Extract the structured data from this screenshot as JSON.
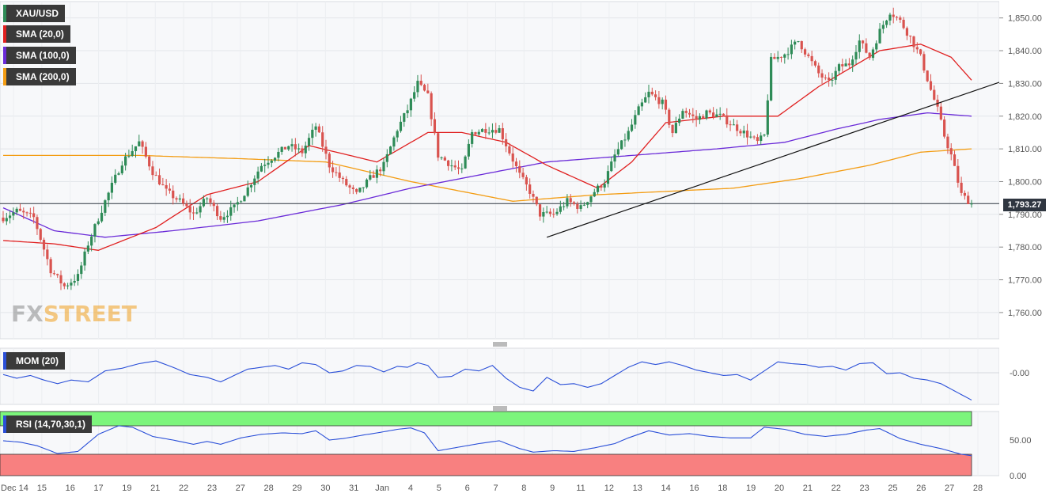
{
  "legends": {
    "main": "XAU/USD",
    "sma20": "SMA (20,0)",
    "sma100": "SMA (100,0)",
    "sma200": "SMA (200,0)",
    "mom": "MOM (20)",
    "rsi": "RSI (14,70,30,1)"
  },
  "colors": {
    "up": "#2e8b57",
    "down": "#d9534f",
    "sma20": "#e02020",
    "sma100": "#6a2ad8",
    "sma200": "#f39c12",
    "indicator": "#2a4fd8",
    "rsi_overbought": "#7cf57c",
    "rsi_oversold": "#f88080"
  },
  "watermark": {
    "part1": "FX",
    "part2": "STREET"
  },
  "current_price": "1,793.27",
  "chart_data": {
    "type": "candlestick",
    "price_axis": {
      "ticks": [
        1850,
        1840,
        1830,
        1820,
        1810,
        1800,
        1790,
        1780,
        1770,
        1760
      ],
      "tick_labels": [
        "1,850.00",
        "1,840.00",
        "1,830.00",
        "1,820.00",
        "1,810.00",
        "1,800.00",
        "1,790.00",
        "1,780.00",
        "1,770.00",
        "1,760.00"
      ],
      "range": [
        1752,
        1855
      ]
    },
    "x_axis_labels": [
      "Dec 14",
      "15",
      "16",
      "17",
      "19",
      "21",
      "22",
      "23",
      "27",
      "28",
      "29",
      "30",
      "31",
      "Jan",
      "4",
      "5",
      "6",
      "7",
      "8",
      "9",
      "11",
      "12",
      "13",
      "14",
      "16",
      "18",
      "19",
      "20",
      "21",
      "22",
      "23",
      "25",
      "26",
      "27",
      "28"
    ],
    "price_anchors": [
      [
        0,
        1789
      ],
      [
        4,
        1791
      ],
      [
        9,
        1789
      ],
      [
        14,
        1773
      ],
      [
        18,
        1768
      ],
      [
        22,
        1771
      ],
      [
        25,
        1781
      ],
      [
        30,
        1794
      ],
      [
        35,
        1806
      ],
      [
        40,
        1812
      ],
      [
        44,
        1803
      ],
      [
        48,
        1797
      ],
      [
        52,
        1794
      ],
      [
        56,
        1790
      ],
      [
        60,
        1795
      ],
      [
        64,
        1789
      ],
      [
        68,
        1792
      ],
      [
        72,
        1798
      ],
      [
        76,
        1805
      ],
      [
        80,
        1808
      ],
      [
        84,
        1811
      ],
      [
        88,
        1809
      ],
      [
        92,
        1817
      ],
      [
        96,
        1805
      ],
      [
        100,
        1800
      ],
      [
        104,
        1796
      ],
      [
        108,
        1801
      ],
      [
        112,
        1805
      ],
      [
        116,
        1816
      ],
      [
        119,
        1822
      ],
      [
        122,
        1830
      ],
      [
        125,
        1826
      ],
      [
        128,
        1808
      ],
      [
        132,
        1805
      ],
      [
        135,
        1803
      ],
      [
        138,
        1815
      ],
      [
        142,
        1816
      ],
      [
        146,
        1816
      ],
      [
        149,
        1809
      ],
      [
        152,
        1802
      ],
      [
        155,
        1797
      ],
      [
        158,
        1790
      ],
      [
        162,
        1790
      ],
      [
        166,
        1794
      ],
      [
        170,
        1792
      ],
      [
        174,
        1797
      ],
      [
        177,
        1800
      ],
      [
        180,
        1808
      ],
      [
        184,
        1815
      ],
      [
        187,
        1822
      ],
      [
        190,
        1827
      ],
      [
        194,
        1824
      ],
      [
        197,
        1815
      ],
      [
        200,
        1822
      ],
      [
        204,
        1819
      ],
      [
        207,
        1821
      ],
      [
        211,
        1820
      ],
      [
        215,
        1817
      ],
      [
        218,
        1815
      ],
      [
        222,
        1812
      ],
      [
        224,
        1814
      ],
      [
        226,
        1837
      ],
      [
        230,
        1839
      ],
      [
        234,
        1843
      ],
      [
        237,
        1838
      ],
      [
        240,
        1833
      ],
      [
        243,
        1830
      ],
      [
        246,
        1835
      ],
      [
        249,
        1836
      ],
      [
        252,
        1843
      ],
      [
        255,
        1838
      ],
      [
        258,
        1846
      ],
      [
        261,
        1852
      ],
      [
        264,
        1849
      ],
      [
        267,
        1844
      ],
      [
        270,
        1838
      ],
      [
        273,
        1828
      ],
      [
        275,
        1822
      ],
      [
        277,
        1814
      ],
      [
        279,
        1808
      ],
      [
        282,
        1796
      ],
      [
        285,
        1793.27
      ]
    ],
    "sma20_anchors": [
      [
        0,
        1782
      ],
      [
        15,
        1781
      ],
      [
        28,
        1779
      ],
      [
        45,
        1786
      ],
      [
        60,
        1796
      ],
      [
        75,
        1800
      ],
      [
        90,
        1811
      ],
      [
        110,
        1806
      ],
      [
        125,
        1815
      ],
      [
        135,
        1815
      ],
      [
        148,
        1812
      ],
      [
        160,
        1805
      ],
      [
        175,
        1798
      ],
      [
        185,
        1806
      ],
      [
        195,
        1818
      ],
      [
        212,
        1820
      ],
      [
        228,
        1820
      ],
      [
        240,
        1829
      ],
      [
        258,
        1840
      ],
      [
        270,
        1842
      ],
      [
        279,
        1838
      ],
      [
        285,
        1831
      ]
    ],
    "sma100_anchors": [
      [
        0,
        1792
      ],
      [
        15,
        1785
      ],
      [
        30,
        1783
      ],
      [
        50,
        1785
      ],
      [
        75,
        1788
      ],
      [
        100,
        1793
      ],
      [
        120,
        1798
      ],
      [
        140,
        1802
      ],
      [
        160,
        1806
      ],
      [
        185,
        1808
      ],
      [
        210,
        1810
      ],
      [
        230,
        1812
      ],
      [
        245,
        1816
      ],
      [
        258,
        1819
      ],
      [
        272,
        1821
      ],
      [
        285,
        1820
      ]
    ],
    "sma200_anchors": [
      [
        0,
        1808
      ],
      [
        40,
        1808
      ],
      [
        70,
        1807
      ],
      [
        95,
        1806
      ],
      [
        120,
        1800
      ],
      [
        150,
        1794
      ],
      [
        175,
        1796
      ],
      [
        195,
        1797
      ],
      [
        215,
        1798
      ],
      [
        235,
        1801
      ],
      [
        255,
        1805
      ],
      [
        270,
        1809
      ],
      [
        285,
        1810
      ]
    ],
    "trendline": {
      "from": [
        160,
        1783
      ],
      "to": [
        295,
        1831
      ]
    },
    "mom_panel": {
      "tick_labels": [
        "-0.00"
      ]
    },
    "mom_anchors": [
      [
        0,
        -2
      ],
      [
        4,
        -6
      ],
      [
        8,
        -3
      ],
      [
        12,
        -8
      ],
      [
        16,
        -12
      ],
      [
        20,
        -8
      ],
      [
        25,
        -10
      ],
      [
        30,
        2
      ],
      [
        35,
        5
      ],
      [
        40,
        10
      ],
      [
        45,
        13
      ],
      [
        50,
        6
      ],
      [
        55,
        -2
      ],
      [
        60,
        -5
      ],
      [
        64,
        -10
      ],
      [
        68,
        -3
      ],
      [
        72,
        4
      ],
      [
        76,
        6
      ],
      [
        80,
        8
      ],
      [
        84,
        4
      ],
      [
        88,
        11
      ],
      [
        92,
        9
      ],
      [
        96,
        0
      ],
      [
        100,
        2
      ],
      [
        104,
        8
      ],
      [
        108,
        7
      ],
      [
        112,
        1
      ],
      [
        116,
        7
      ],
      [
        119,
        6
      ],
      [
        122,
        11
      ],
      [
        125,
        8
      ],
      [
        128,
        -5
      ],
      [
        132,
        -4
      ],
      [
        136,
        4
      ],
      [
        140,
        2
      ],
      [
        144,
        8
      ],
      [
        148,
        -6
      ],
      [
        152,
        -16
      ],
      [
        156,
        -20
      ],
      [
        160,
        -5
      ],
      [
        164,
        -13
      ],
      [
        168,
        -12
      ],
      [
        172,
        -16
      ],
      [
        176,
        -12
      ],
      [
        180,
        -3
      ],
      [
        184,
        6
      ],
      [
        188,
        12
      ],
      [
        192,
        9
      ],
      [
        196,
        12
      ],
      [
        200,
        8
      ],
      [
        204,
        3
      ],
      [
        208,
        0
      ],
      [
        212,
        -3
      ],
      [
        216,
        -2
      ],
      [
        220,
        -8
      ],
      [
        224,
        2
      ],
      [
        228,
        12
      ],
      [
        232,
        10
      ],
      [
        236,
        9
      ],
      [
        240,
        6
      ],
      [
        244,
        7
      ],
      [
        248,
        3
      ],
      [
        252,
        10
      ],
      [
        256,
        11
      ],
      [
        260,
        -1
      ],
      [
        264,
        0
      ],
      [
        268,
        -6
      ],
      [
        272,
        -8
      ],
      [
        276,
        -12
      ],
      [
        280,
        -20
      ],
      [
        285,
        -30
      ]
    ],
    "rsi_panel": {
      "tick_labels": [
        "50.00",
        "0.00"
      ],
      "overbought": 70,
      "oversold": 30,
      "range": [
        0,
        90
      ]
    },
    "rsi_anchors": [
      [
        0,
        49
      ],
      [
        5,
        47
      ],
      [
        10,
        42
      ],
      [
        16,
        31
      ],
      [
        22,
        34
      ],
      [
        28,
        58
      ],
      [
        34,
        70
      ],
      [
        38,
        68
      ],
      [
        44,
        55
      ],
      [
        50,
        50
      ],
      [
        56,
        44
      ],
      [
        60,
        48
      ],
      [
        64,
        44
      ],
      [
        70,
        53
      ],
      [
        76,
        58
      ],
      [
        82,
        60
      ],
      [
        88,
        59
      ],
      [
        92,
        63
      ],
      [
        96,
        50
      ],
      [
        100,
        52
      ],
      [
        106,
        57
      ],
      [
        110,
        60
      ],
      [
        116,
        65
      ],
      [
        120,
        67
      ],
      [
        124,
        60
      ],
      [
        128,
        35
      ],
      [
        134,
        40
      ],
      [
        140,
        45
      ],
      [
        146,
        49
      ],
      [
        152,
        38
      ],
      [
        156,
        33
      ],
      [
        162,
        35
      ],
      [
        168,
        34
      ],
      [
        174,
        39
      ],
      [
        180,
        45
      ],
      [
        184,
        53
      ],
      [
        190,
        63
      ],
      [
        196,
        57
      ],
      [
        202,
        59
      ],
      [
        208,
        55
      ],
      [
        214,
        53
      ],
      [
        220,
        53
      ],
      [
        224,
        68
      ],
      [
        230,
        65
      ],
      [
        236,
        58
      ],
      [
        242,
        55
      ],
      [
        248,
        58
      ],
      [
        254,
        64
      ],
      [
        258,
        66
      ],
      [
        264,
        52
      ],
      [
        270,
        44
      ],
      [
        276,
        38
      ],
      [
        282,
        30
      ],
      [
        285,
        28
      ]
    ]
  }
}
